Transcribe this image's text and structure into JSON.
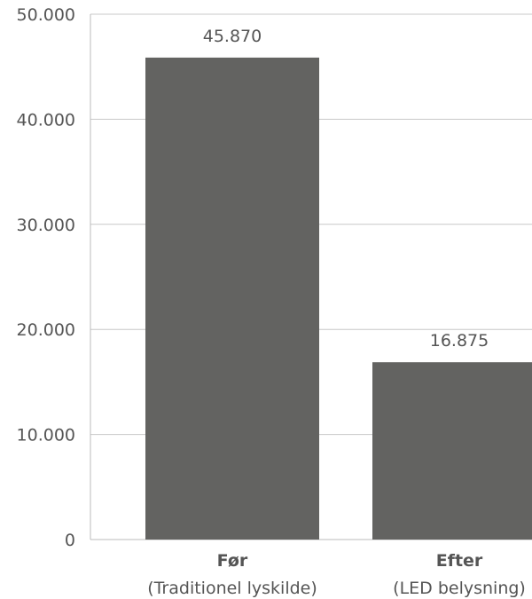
{
  "chart_data": {
    "type": "bar",
    "categories": [
      "Før",
      "Efter"
    ],
    "category_sublabels": [
      "(Traditionel lyskilde)",
      "(LED belysning)"
    ],
    "values": [
      45870,
      16875
    ],
    "value_labels": [
      "45.870",
      "16.875"
    ],
    "ylim": [
      0,
      50000
    ],
    "yticks": [
      0,
      10000,
      20000,
      30000,
      40000,
      50000
    ],
    "ytick_labels": [
      "0",
      "10.000",
      "20.000",
      "30.000",
      "40.000",
      "50.000"
    ],
    "grid": true,
    "title": "",
    "xlabel": "",
    "ylabel": "",
    "colors": {
      "bar": "#636361",
      "grid": "#c8c8c8",
      "axis": "#bbbbbb",
      "text": "#555555"
    }
  }
}
